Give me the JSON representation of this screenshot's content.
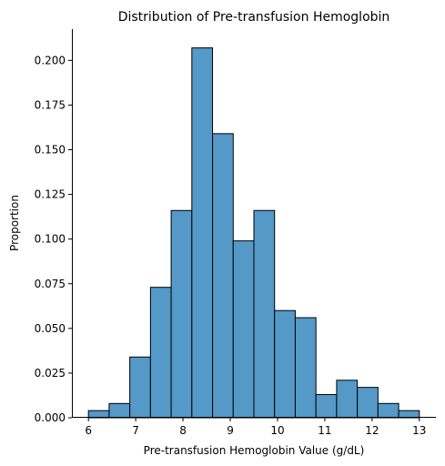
{
  "chart_data": {
    "type": "bar",
    "title": "Distribution of Pre-transfusion Hemoglobin",
    "xlabel": "Pre-transfusion Hemoglobin Value (g/dL)",
    "ylabel": "Proportion",
    "bin_edges": [
      6.0,
      6.4375,
      6.875,
      7.3125,
      7.75,
      8.1875,
      8.625,
      9.0625,
      9.5,
      9.9375,
      10.375,
      10.8125,
      11.25,
      11.6875,
      12.125,
      12.5625,
      13.0
    ],
    "values": [
      0.004,
      0.008,
      0.034,
      0.073,
      0.116,
      0.207,
      0.159,
      0.099,
      0.116,
      0.06,
      0.056,
      0.013,
      0.021,
      0.017,
      0.008,
      0.004
    ],
    "xlim": [
      5.65,
      13.35
    ],
    "ylim": [
      0,
      0.2175
    ],
    "xticks": [
      6,
      7,
      8,
      9,
      10,
      11,
      12,
      13
    ],
    "xtick_labels": [
      "6",
      "7",
      "8",
      "9",
      "10",
      "11",
      "12",
      "13"
    ],
    "yticks": [
      0.0,
      0.025,
      0.05,
      0.075,
      0.1,
      0.125,
      0.15,
      0.175,
      0.2
    ],
    "ytick_labels": [
      "0.000",
      "0.025",
      "0.050",
      "0.075",
      "0.100",
      "0.125",
      "0.150",
      "0.175",
      "0.200"
    ],
    "grid": false,
    "bar_color": "#5499c7",
    "edge_color": "#000000"
  }
}
